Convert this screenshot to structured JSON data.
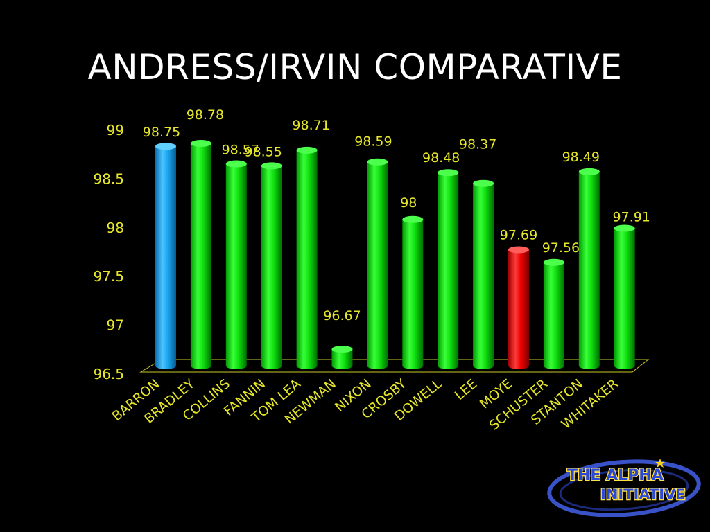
{
  "slide": {
    "title": "ANDRESS/IRVIN COMPARATIVE"
  },
  "logo": {
    "line1": "THE ALPHA",
    "line2": "INITIATIVE"
  },
  "chart_data": {
    "type": "bar",
    "title": "",
    "xlabel": "",
    "ylabel": "",
    "ylim": [
      96.5,
      99
    ],
    "yticks": [
      "99",
      "98.5",
      "98",
      "97.5",
      "97",
      "96.5"
    ],
    "categories": [
      "BARRON",
      "BRADLEY",
      "COLLINS",
      "FANNIN",
      "TOM LEA",
      "NEWMAN",
      "NIXON",
      "CROSBY",
      "DOWELL",
      "LEE",
      "MOYE",
      "SCHUSTER",
      "STANTON",
      "WHITAKER"
    ],
    "values": [
      98.75,
      98.78,
      98.57,
      98.55,
      98.71,
      96.67,
      98.59,
      98,
      98.48,
      98.37,
      97.69,
      97.56,
      98.49,
      97.91
    ],
    "value_labels": [
      "98.75",
      "98.78",
      "98.57",
      "98.55",
      "98.71",
      "96.67",
      "98.59",
      "98",
      "98.48",
      "98.37",
      "97.69",
      "97.56",
      "98.49",
      "97.91"
    ],
    "bar_colors": [
      "#1aa7ee",
      "#00ee00",
      "#00ee00",
      "#00ee00",
      "#00ee00",
      "#00ee00",
      "#00ee00",
      "#00ee00",
      "#00ee00",
      "#00ee00",
      "#ee0000",
      "#00ee00",
      "#00ee00",
      "#00ee00"
    ],
    "label_color": "#e6e62a",
    "grid": false,
    "legend": "none"
  }
}
